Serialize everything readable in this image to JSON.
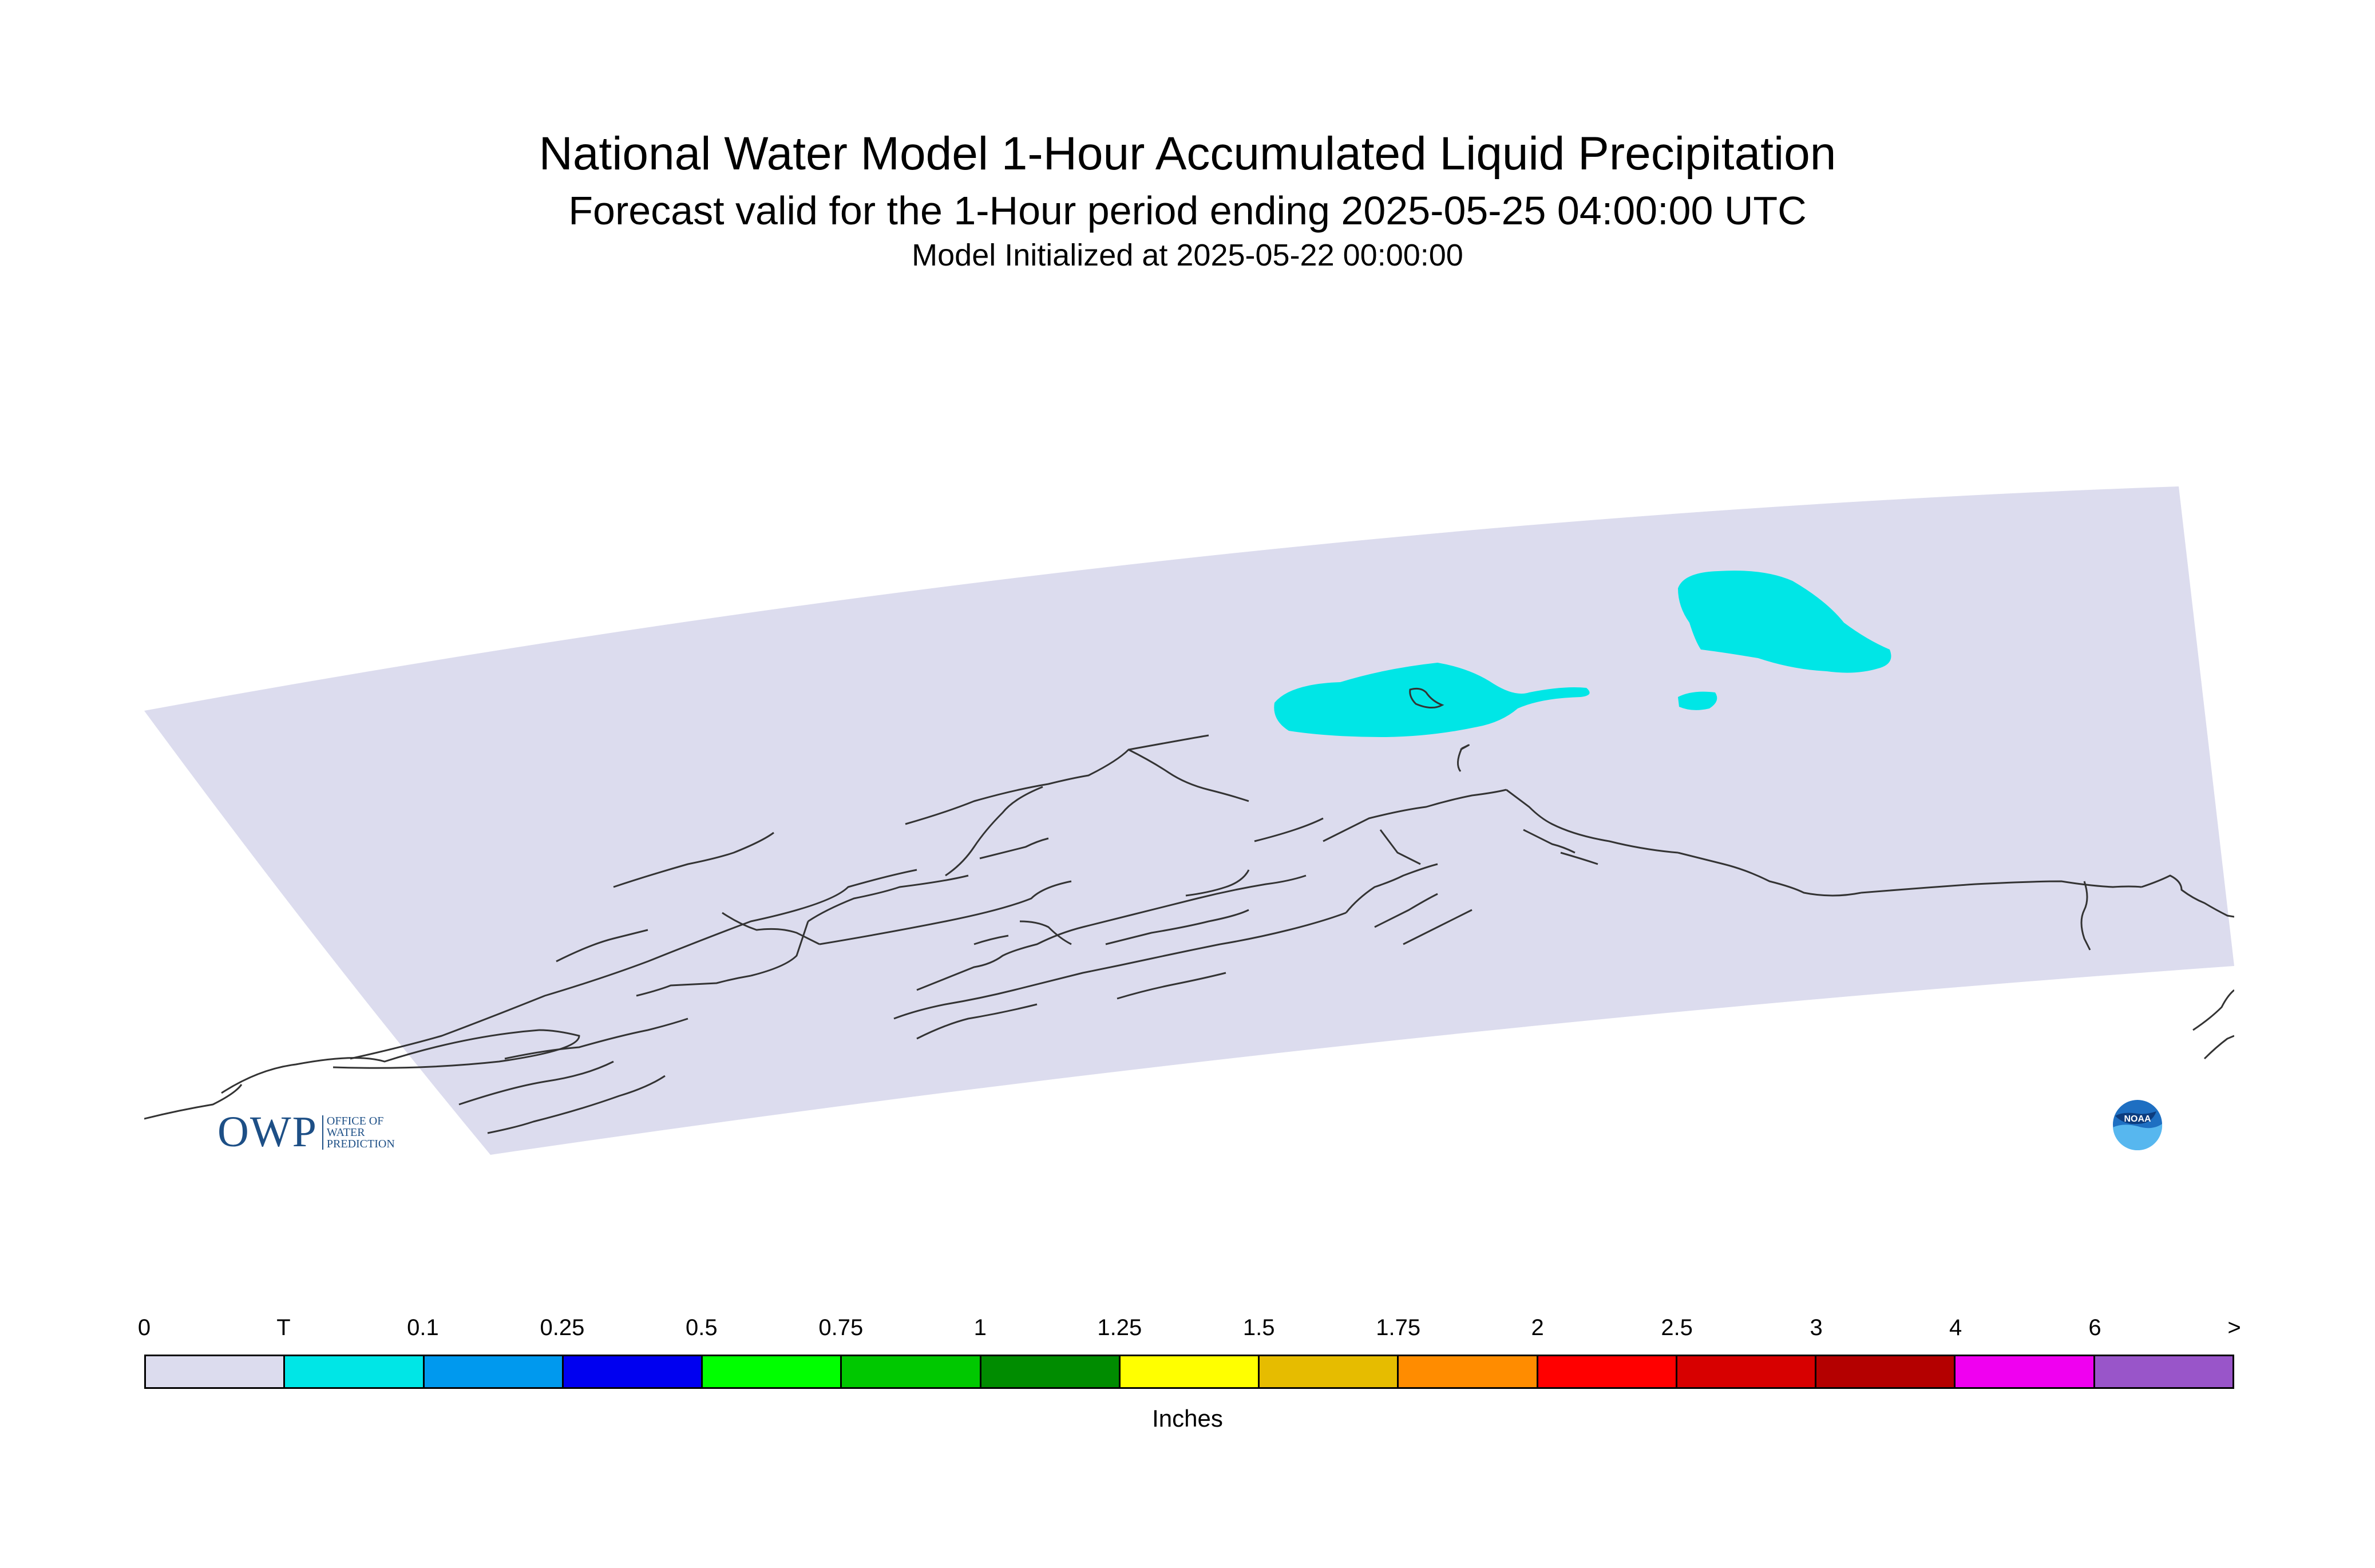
{
  "titles": {
    "main": "National Water Model 1-Hour Accumulated Liquid Precipitation",
    "forecast": "Forecast valid for the 1-Hour period ending 2025-05-25 04:00:00 UTC",
    "initialized": "Model Initialized at 2025-05-22 00:00:00"
  },
  "map": {
    "domain_fill": "#dcdcee",
    "precip_fill": "#00e6e6",
    "coastline_color": "#333333"
  },
  "legend": {
    "unit_label": "Inches",
    "ticks": [
      "0",
      "T",
      "0.1",
      "0.25",
      "0.5",
      "0.75",
      "1",
      "1.25",
      "1.5",
      "1.75",
      "2",
      "2.5",
      "3",
      "4",
      "6",
      ">"
    ],
    "colors": [
      "#dcdcee",
      "#00e6e6",
      "#0099ee",
      "#0000f0",
      "#00ff00",
      "#00c800",
      "#008c00",
      "#ffff00",
      "#e6bc00",
      "#ff8c00",
      "#ff0000",
      "#d70000",
      "#b40000",
      "#f000f0",
      "#9955c9"
    ]
  },
  "logos": {
    "owp": {
      "letters": "OWP",
      "sub_lines": [
        "OFFICE OF",
        "WATER",
        "PREDICTION"
      ],
      "color": "#1d4f86"
    },
    "noaa": {
      "text": "NOAA",
      "color": "#1e6fc2"
    }
  }
}
